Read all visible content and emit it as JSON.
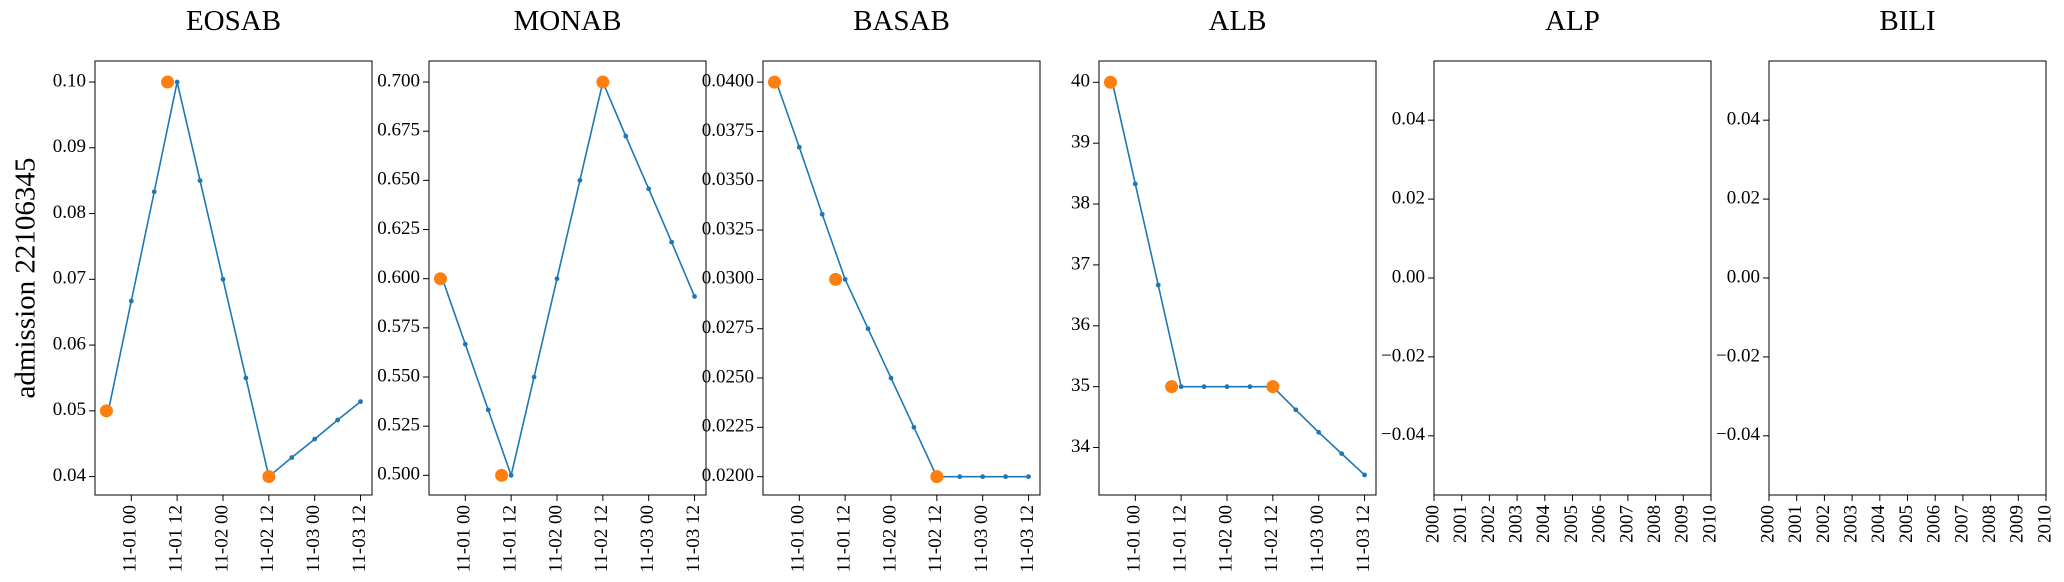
{
  "chart_data": [
    {
      "type": "line",
      "title": "EOSAB",
      "ylabel": "admission 22106345",
      "xlim": [
        -9.5,
        63
      ],
      "ylim": [
        0.0372,
        0.1032
      ],
      "xticks": [
        {
          "value": 0,
          "label": "11-01 00"
        },
        {
          "value": 12,
          "label": "11-01 12"
        },
        {
          "value": 24,
          "label": "11-02 00"
        },
        {
          "value": 36,
          "label": "11-02 12"
        },
        {
          "value": 48,
          "label": "11-03 00"
        },
        {
          "value": 60,
          "label": "11-03 12"
        }
      ],
      "yticks": [
        0.04,
        0.05,
        0.06,
        0.07,
        0.08,
        0.09,
        {
          "value": 0.1,
          "label": "0.10"
        }
      ],
      "series": [
        {
          "color": "#1f77b4",
          "line": true,
          "x": [
            -6,
            0,
            6,
            12,
            18,
            24,
            30,
            36,
            42,
            48,
            54,
            60
          ],
          "values": [
            0.05,
            0.0667,
            0.0833,
            0.1,
            0.085,
            0.07,
            0.055,
            0.04,
            0.0429,
            0.0457,
            0.0486,
            0.0514
          ]
        },
        {
          "color": "#ff7f0e",
          "line": false,
          "x": [
            -6.5,
            9.5,
            36
          ],
          "values": [
            0.05,
            0.1,
            0.04
          ]
        }
      ]
    },
    {
      "type": "line",
      "title": "MONAB",
      "xlim": [
        -9.5,
        63
      ],
      "ylim": [
        0.49,
        0.7107
      ],
      "xticks": [
        {
          "value": 0,
          "label": "11-01 00"
        },
        {
          "value": 12,
          "label": "11-01 12"
        },
        {
          "value": 24,
          "label": "11-02 00"
        },
        {
          "value": 36,
          "label": "11-02 12"
        },
        {
          "value": 48,
          "label": "11-03 00"
        },
        {
          "value": 60,
          "label": "11-03 12"
        }
      ],
      "yticks": [
        {
          "value": 0.5,
          "label": "0.500"
        },
        0.525,
        {
          "value": 0.55,
          "label": "0.550"
        },
        0.575,
        {
          "value": 0.6,
          "label": "0.600"
        },
        0.625,
        {
          "value": 0.65,
          "label": "0.650"
        },
        0.675,
        {
          "value": 0.7,
          "label": "0.700"
        }
      ],
      "series": [
        {
          "color": "#1f77b4",
          "line": true,
          "x": [
            -6,
            0,
            6,
            12,
            18,
            24,
            30,
            36,
            42,
            48,
            54,
            60
          ],
          "values": [
            0.6,
            0.5667,
            0.5333,
            0.5,
            0.55,
            0.6,
            0.65,
            0.7,
            0.6725,
            0.6457,
            0.6186,
            0.591
          ]
        },
        {
          "color": "#ff7f0e",
          "line": false,
          "x": [
            -6.5,
            9.5,
            36
          ],
          "values": [
            0.6,
            0.5,
            0.7
          ]
        }
      ]
    },
    {
      "type": "line",
      "title": "BASAB",
      "xlim": [
        -9.5,
        63
      ],
      "ylim": [
        0.01907,
        0.04107
      ],
      "xticks": [
        {
          "value": 0,
          "label": "11-01 00"
        },
        {
          "value": 12,
          "label": "11-01 12"
        },
        {
          "value": 24,
          "label": "11-02 00"
        },
        {
          "value": 36,
          "label": "11-02 12"
        },
        {
          "value": 48,
          "label": "11-03 00"
        },
        {
          "value": 60,
          "label": "11-03 12"
        }
      ],
      "yticks": [
        {
          "value": 0.02,
          "label": "0.0200"
        },
        {
          "value": 0.0225,
          "label": "0.0225"
        },
        {
          "value": 0.025,
          "label": "0.0250"
        },
        {
          "value": 0.0275,
          "label": "0.0275"
        },
        {
          "value": 0.03,
          "label": "0.0300"
        },
        {
          "value": 0.0325,
          "label": "0.0325"
        },
        {
          "value": 0.035,
          "label": "0.0350"
        },
        {
          "value": 0.0375,
          "label": "0.0375"
        },
        {
          "value": 0.04,
          "label": "0.0400"
        }
      ],
      "series": [
        {
          "color": "#1f77b4",
          "line": true,
          "x": [
            -6,
            0,
            6,
            12,
            18,
            24,
            30,
            36,
            42,
            48,
            54,
            60
          ],
          "values": [
            0.04,
            0.0367,
            0.0333,
            0.03,
            0.0275,
            0.025,
            0.0225,
            0.02,
            0.02,
            0.02,
            0.02,
            0.02
          ]
        },
        {
          "color": "#ff7f0e",
          "line": false,
          "x": [
            -6.5,
            9.5,
            36
          ],
          "values": [
            0.04,
            0.03,
            0.02
          ]
        }
      ]
    },
    {
      "type": "line",
      "title": "ALB",
      "xlim": [
        -9.5,
        63
      ],
      "ylim": [
        33.22,
        40.35
      ],
      "xticks": [
        {
          "value": 0,
          "label": "11-01 00"
        },
        {
          "value": 12,
          "label": "11-01 12"
        },
        {
          "value": 24,
          "label": "11-02 00"
        },
        {
          "value": 36,
          "label": "11-02 12"
        },
        {
          "value": 48,
          "label": "11-03 00"
        },
        {
          "value": 60,
          "label": "11-03 12"
        }
      ],
      "yticks": [
        34,
        35,
        36,
        37,
        38,
        39,
        40
      ],
      "series": [
        {
          "color": "#1f77b4",
          "line": true,
          "x": [
            -6,
            0,
            6,
            12,
            18,
            24,
            30,
            36,
            42,
            48,
            54,
            60
          ],
          "values": [
            40,
            38.33,
            36.67,
            35,
            35,
            35,
            35,
            35,
            34.62,
            34.25,
            33.9,
            33.55
          ]
        },
        {
          "color": "#ff7f0e",
          "line": false,
          "x": [
            -6.5,
            9.5,
            36
          ],
          "values": [
            40,
            35,
            35
          ]
        }
      ]
    },
    {
      "type": "line",
      "title": "ALP",
      "xlim": [
        2000,
        2010
      ],
      "ylim": [
        -0.055,
        0.055
      ],
      "xticks": [
        2000,
        2001,
        2002,
        2003,
        2004,
        2005,
        2006,
        2007,
        2008,
        2009,
        2010
      ],
      "yticks": [
        {
          "value": -0.04,
          "label": "−0.04"
        },
        {
          "value": -0.02,
          "label": "−0.02"
        },
        {
          "value": 0,
          "label": "0.00"
        },
        0.02,
        0.04
      ],
      "series": []
    },
    {
      "type": "line",
      "title": "BILI",
      "xlim": [
        2000,
        2010
      ],
      "ylim": [
        -0.055,
        0.055
      ],
      "xticks": [
        2000,
        2001,
        2002,
        2003,
        2004,
        2005,
        2006,
        2007,
        2008,
        2009,
        2010
      ],
      "yticks": [
        {
          "value": -0.04,
          "label": "−0.04"
        },
        {
          "value": -0.02,
          "label": "−0.02"
        },
        {
          "value": 0,
          "label": "0.00"
        },
        0.02,
        0.04
      ],
      "series": []
    }
  ]
}
